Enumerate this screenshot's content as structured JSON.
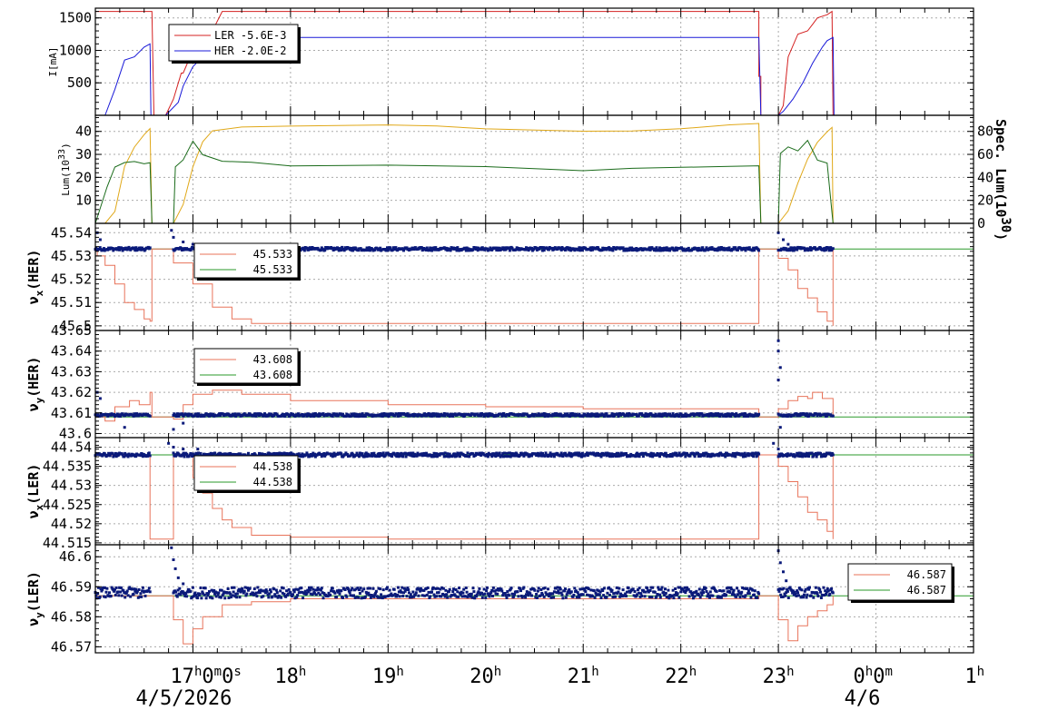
{
  "colors": {
    "ler": "#d42020",
    "her": "#1a1ad8",
    "lum": "#e0a818",
    "spec": "#1a6b1a",
    "tune_line": "#e8735a",
    "tune_ref": "#2a9a2a",
    "tune_pts": "#0a1a7a",
    "grid": "#aaaaaa"
  },
  "x_axis": {
    "ticks": [
      {
        "t": 17,
        "label": "17",
        "sup": "h",
        "extra": "0",
        "extra_sup": "m",
        "extra2": "0",
        "extra2_sup": "s"
      },
      {
        "t": 18,
        "label": "18",
        "sup": "h"
      },
      {
        "t": 19,
        "label": "19",
        "sup": "h"
      },
      {
        "t": 20,
        "label": "20",
        "sup": "h"
      },
      {
        "t": 21,
        "label": "21",
        "sup": "h"
      },
      {
        "t": 22,
        "label": "22",
        "sup": "h"
      },
      {
        "t": 23,
        "label": "23",
        "sup": "h"
      },
      {
        "t": 24,
        "label": "0",
        "sup": "h",
        "extra": "0",
        "extra_sup": "m"
      },
      {
        "t": 25,
        "label": "1",
        "sup": "h"
      }
    ],
    "dates": [
      {
        "t": 17,
        "label": "4/5/2026"
      },
      {
        "t": 24,
        "label": "4/6"
      }
    ],
    "range": [
      16.0,
      25.0
    ]
  },
  "chart_data": [
    {
      "type": "line",
      "ylabel": "I[mA]",
      "ylim": [
        0,
        1650
      ],
      "yticks": [
        500,
        1000,
        1500
      ],
      "legend": [
        {
          "name": "LER  -5.6E-3",
          "color": "#d42020"
        },
        {
          "name": "HER  -2.0E-2",
          "color": "#1a1ad8"
        }
      ],
      "series": [
        {
          "name": "LER  -5.6E-3",
          "color": "#d42020",
          "x": [
            16.0,
            16.01,
            16.56,
            16.58,
            16.6,
            16.65,
            16.7,
            16.72,
            16.8,
            16.88,
            16.9,
            17.0,
            17.2,
            17.3,
            22.8,
            22.8,
            22.82,
            22.82,
            23.0,
            23.05,
            23.1,
            23.2,
            23.3,
            23.35,
            23.4,
            23.5,
            23.55,
            23.56,
            23.57,
            25.0
          ],
          "y": [
            1600,
            1600,
            1600,
            1600,
            0,
            0,
            0,
            0,
            250,
            650,
            650,
            1000,
            1300,
            1600,
            1600,
            600,
            600,
            0,
            0,
            150,
            900,
            1250,
            1300,
            1400,
            1500,
            1550,
            1600,
            0,
            0,
            0
          ]
        },
        {
          "name": "HER  -2.0E-2",
          "color": "#1a1ad8",
          "x": [
            16.0,
            16.1,
            16.2,
            16.3,
            16.4,
            16.5,
            16.56,
            16.57,
            16.72,
            16.85,
            16.9,
            17.0,
            17.1,
            17.2,
            17.3,
            22.8,
            22.82,
            23.0,
            23.05,
            23.15,
            23.25,
            23.35,
            23.45,
            23.5,
            23.56,
            23.57,
            25.0
          ],
          "y": [
            0,
            0,
            400,
            850,
            900,
            1050,
            1100,
            0,
            0,
            200,
            450,
            750,
            900,
            1050,
            1200,
            1200,
            0,
            0,
            60,
            250,
            500,
            800,
            1050,
            1150,
            1200,
            0,
            0
          ]
        }
      ]
    },
    {
      "type": "line",
      "ylabel": "Lum(10",
      "ylabel_sup": "33",
      "ylabel_end": ")",
      "y2label": "Spec. Lum(10",
      "y2label_sup": "30",
      "y2label_end": ")",
      "ylim": [
        0,
        47
      ],
      "yticks": [
        10,
        20,
        30,
        40
      ],
      "y2lim": [
        0,
        94
      ],
      "y2ticks": [
        0,
        20,
        40,
        60,
        80
      ],
      "series": [
        {
          "name": "Lum",
          "color": "#e0a818",
          "x": [
            16.0,
            16.1,
            16.2,
            16.3,
            16.4,
            16.5,
            16.56,
            16.58,
            16.8,
            16.9,
            17.0,
            17.1,
            17.2,
            17.5,
            18.0,
            19.0,
            19.5,
            20.0,
            21.0,
            21.5,
            22.0,
            22.5,
            22.8,
            22.82,
            23.0,
            23.1,
            23.2,
            23.3,
            23.4,
            23.5,
            23.55,
            23.56,
            25.0
          ],
          "y": [
            0,
            0,
            5,
            25,
            33,
            38,
            41,
            0,
            0,
            8,
            25,
            35,
            40,
            41.5,
            42,
            43,
            42,
            41.5,
            40,
            40.5,
            41.5,
            42.5,
            43,
            0,
            0,
            5,
            18,
            28,
            35,
            40,
            42,
            0,
            0
          ]
        },
        {
          "name": "Spec",
          "color": "#1a6b1a",
          "x": [
            16.0,
            16.12,
            16.2,
            16.3,
            16.4,
            16.5,
            16.56,
            16.58,
            16.8,
            16.82,
            16.9,
            17.0,
            17.1,
            17.3,
            17.6,
            18.0,
            19.0,
            20.0,
            21.0,
            21.5,
            22.0,
            22.5,
            22.8,
            22.82,
            23.0,
            23.02,
            23.1,
            23.2,
            23.3,
            23.4,
            23.5,
            23.56,
            25.0
          ],
          "y": [
            0,
            16,
            24,
            26,
            27,
            26,
            26,
            0,
            0,
            25,
            28,
            36,
            30,
            27,
            26,
            25,
            25,
            25,
            23,
            23.5,
            24,
            25,
            25,
            0,
            0,
            30,
            33,
            32,
            36,
            28,
            26,
            0,
            0
          ]
        }
      ]
    },
    {
      "type": "scatter",
      "ylabel": "ν",
      "ylabel_sub": "x",
      "ylabel_end": "(HER)",
      "ylim": [
        45.498,
        45.544
      ],
      "yticks": [
        45.5,
        45.51,
        45.52,
        45.53,
        45.54
      ],
      "ytick_labels": [
        "45.5",
        "45.51",
        "45.52",
        "45.53",
        "45.54"
      ],
      "reference": 45.533,
      "legend": [
        {
          "name": "45.533",
          "color": "#e8735a"
        },
        {
          "name": "45.533",
          "color": "#2a9a2a"
        }
      ],
      "line": {
        "color": "#e8735a",
        "x": [
          16.0,
          16.02,
          16.1,
          16.2,
          16.3,
          16.4,
          16.5,
          16.56,
          16.58,
          16.8,
          17.0,
          17.2,
          17.4,
          17.6,
          22.8,
          22.8,
          23.0,
          23.1,
          23.2,
          23.3,
          23.4,
          23.5,
          23.56,
          23.56
        ],
        "y": [
          45.533,
          45.53,
          45.526,
          45.518,
          45.51,
          45.507,
          45.503,
          45.502,
          45.533,
          45.527,
          45.518,
          45.508,
          45.503,
          45.501,
          45.501,
          45.533,
          45.529,
          45.524,
          45.516,
          45.512,
          45.506,
          45.502,
          45.5,
          45.533
        ]
      },
      "points": {
        "color": "#0a1a7a",
        "center": 45.533,
        "spread": 0.0007,
        "segments": [
          [
            16.0,
            16.56
          ],
          [
            16.8,
            22.8
          ],
          [
            23.0,
            23.56
          ]
        ],
        "outliers": [
          [
            16.02,
            45.54
          ],
          [
            16.05,
            45.537
          ],
          [
            16.78,
            45.541
          ],
          [
            16.8,
            45.538
          ],
          [
            16.9,
            45.536
          ],
          [
            17.0,
            45.535
          ],
          [
            23.0,
            45.54
          ],
          [
            23.05,
            45.537
          ],
          [
            23.1,
            45.535
          ]
        ]
      }
    },
    {
      "type": "scatter",
      "ylabel": "ν",
      "ylabel_sub": "y",
      "ylabel_end": "(HER)",
      "ylim": [
        43.598,
        43.65
      ],
      "yticks": [
        43.6,
        43.61,
        43.62,
        43.63,
        43.64,
        43.65
      ],
      "ytick_labels": [
        "43.6",
        "43.61",
        "43.62",
        "43.63",
        "43.64",
        "43.65"
      ],
      "reference": 43.608,
      "legend": [
        {
          "name": "43.608",
          "color": "#e8735a"
        },
        {
          "name": "43.608",
          "color": "#2a9a2a"
        }
      ],
      "line": {
        "color": "#e8735a",
        "x": [
          16.0,
          16.1,
          16.2,
          16.35,
          16.45,
          16.56,
          16.58,
          16.8,
          16.9,
          17.0,
          17.2,
          17.5,
          18.0,
          19.0,
          20.0,
          21.0,
          22.0,
          22.8,
          22.8,
          23.0,
          23.1,
          23.2,
          23.3,
          23.35,
          23.45,
          23.56,
          23.56
        ],
        "y": [
          43.608,
          43.606,
          43.613,
          43.616,
          43.614,
          43.62,
          43.608,
          43.607,
          43.614,
          43.619,
          43.621,
          43.619,
          43.616,
          43.614,
          43.613,
          43.612,
          43.612,
          43.612,
          43.608,
          43.612,
          43.616,
          43.618,
          43.617,
          43.62,
          43.617,
          43.614,
          43.608
        ]
      },
      "points": {
        "color": "#0a1a7a",
        "center": 43.609,
        "spread": 0.0007,
        "segments": [
          [
            16.0,
            16.56
          ],
          [
            16.8,
            22.8
          ],
          [
            23.0,
            23.56
          ]
        ],
        "outliers": [
          [
            16.02,
            43.62
          ],
          [
            16.05,
            43.617
          ],
          [
            16.3,
            43.603
          ],
          [
            16.8,
            43.602
          ],
          [
            16.9,
            43.605
          ],
          [
            23.0,
            43.645
          ],
          [
            23.0,
            43.64
          ],
          [
            23.02,
            43.632
          ],
          [
            23.0,
            43.626
          ],
          [
            23.02,
            43.603
          ]
        ]
      }
    },
    {
      "type": "scatter",
      "ylabel": "ν",
      "ylabel_sub": "x",
      "ylabel_end": "(LER)",
      "ylim": [
        44.5145,
        44.5425
      ],
      "yticks": [
        44.515,
        44.52,
        44.525,
        44.53,
        44.535,
        44.54
      ],
      "ytick_labels": [
        "44.515",
        "44.52",
        "44.525",
        "44.53",
        "44.535",
        "44.54"
      ],
      "reference": 44.538,
      "legend": [
        {
          "name": "44.538",
          "color": "#e8735a"
        },
        {
          "name": "44.538",
          "color": "#2a9a2a"
        }
      ],
      "line": {
        "color": "#e8735a",
        "x": [
          16.0,
          16.56,
          16.56,
          16.58,
          16.8,
          17.0,
          17.1,
          17.2,
          17.3,
          17.4,
          17.6,
          18.0,
          19.0,
          22.8,
          22.8,
          23.0,
          23.1,
          23.2,
          23.3,
          23.4,
          23.5,
          23.56,
          23.56
        ],
        "y": [
          44.538,
          44.538,
          44.516,
          44.516,
          44.538,
          44.532,
          44.528,
          44.524,
          44.521,
          44.519,
          44.517,
          44.5165,
          44.516,
          44.516,
          44.538,
          44.535,
          44.531,
          44.527,
          44.523,
          44.521,
          44.518,
          44.516,
          44.538
        ]
      },
      "points": {
        "color": "#0a1a7a",
        "center": 44.538,
        "spread": 0.0005,
        "segments": [
          [
            16.0,
            16.56
          ],
          [
            16.8,
            22.8
          ],
          [
            23.0,
            23.56
          ]
        ],
        "outliers": [
          [
            16.75,
            44.541
          ],
          [
            16.8,
            44.54
          ],
          [
            16.9,
            44.5395
          ],
          [
            17.05,
            44.5395
          ],
          [
            22.95,
            44.541
          ],
          [
            23.0,
            44.5395
          ]
        ]
      }
    },
    {
      "type": "scatter",
      "ylabel": "ν",
      "ylabel_sub": "y",
      "ylabel_end": "(LER)",
      "ylim": [
        46.568,
        46.604
      ],
      "yticks": [
        46.57,
        46.58,
        46.59,
        46.6
      ],
      "ytick_labels": [
        "46.57",
        "46.58",
        "46.59",
        "46.6"
      ],
      "reference": 46.587,
      "legend": [
        {
          "name": "46.587",
          "color": "#e8735a"
        },
        {
          "name": "46.587",
          "color": "#2a9a2a"
        }
      ],
      "line": {
        "color": "#e8735a",
        "x": [
          16.0,
          16.56,
          16.56,
          16.8,
          16.9,
          17.0,
          17.1,
          17.3,
          17.6,
          18.0,
          20.0,
          21.0,
          22.0,
          22.8,
          22.8,
          23.0,
          23.1,
          23.2,
          23.3,
          23.4,
          23.5,
          23.56,
          23.56
        ],
        "y": [
          46.587,
          46.587,
          46.587,
          46.579,
          46.571,
          46.576,
          46.58,
          46.584,
          46.585,
          46.586,
          46.586,
          46.586,
          46.586,
          46.586,
          46.587,
          46.579,
          46.572,
          46.577,
          46.58,
          46.582,
          46.584,
          46.585,
          46.587
        ]
      },
      "points": {
        "color": "#0a1a7a",
        "center": 46.588,
        "spread": 0.0018,
        "segments": [
          [
            16.0,
            16.56
          ],
          [
            16.8,
            22.8
          ],
          [
            23.0,
            23.56
          ]
        ],
        "outliers": [
          [
            16.78,
            46.603
          ],
          [
            16.8,
            46.599
          ],
          [
            16.82,
            46.596
          ],
          [
            16.85,
            46.593
          ],
          [
            16.9,
            46.591
          ],
          [
            23.0,
            46.602
          ],
          [
            23.02,
            46.598
          ],
          [
            23.05,
            46.595
          ],
          [
            23.08,
            46.592
          ]
        ]
      }
    }
  ]
}
